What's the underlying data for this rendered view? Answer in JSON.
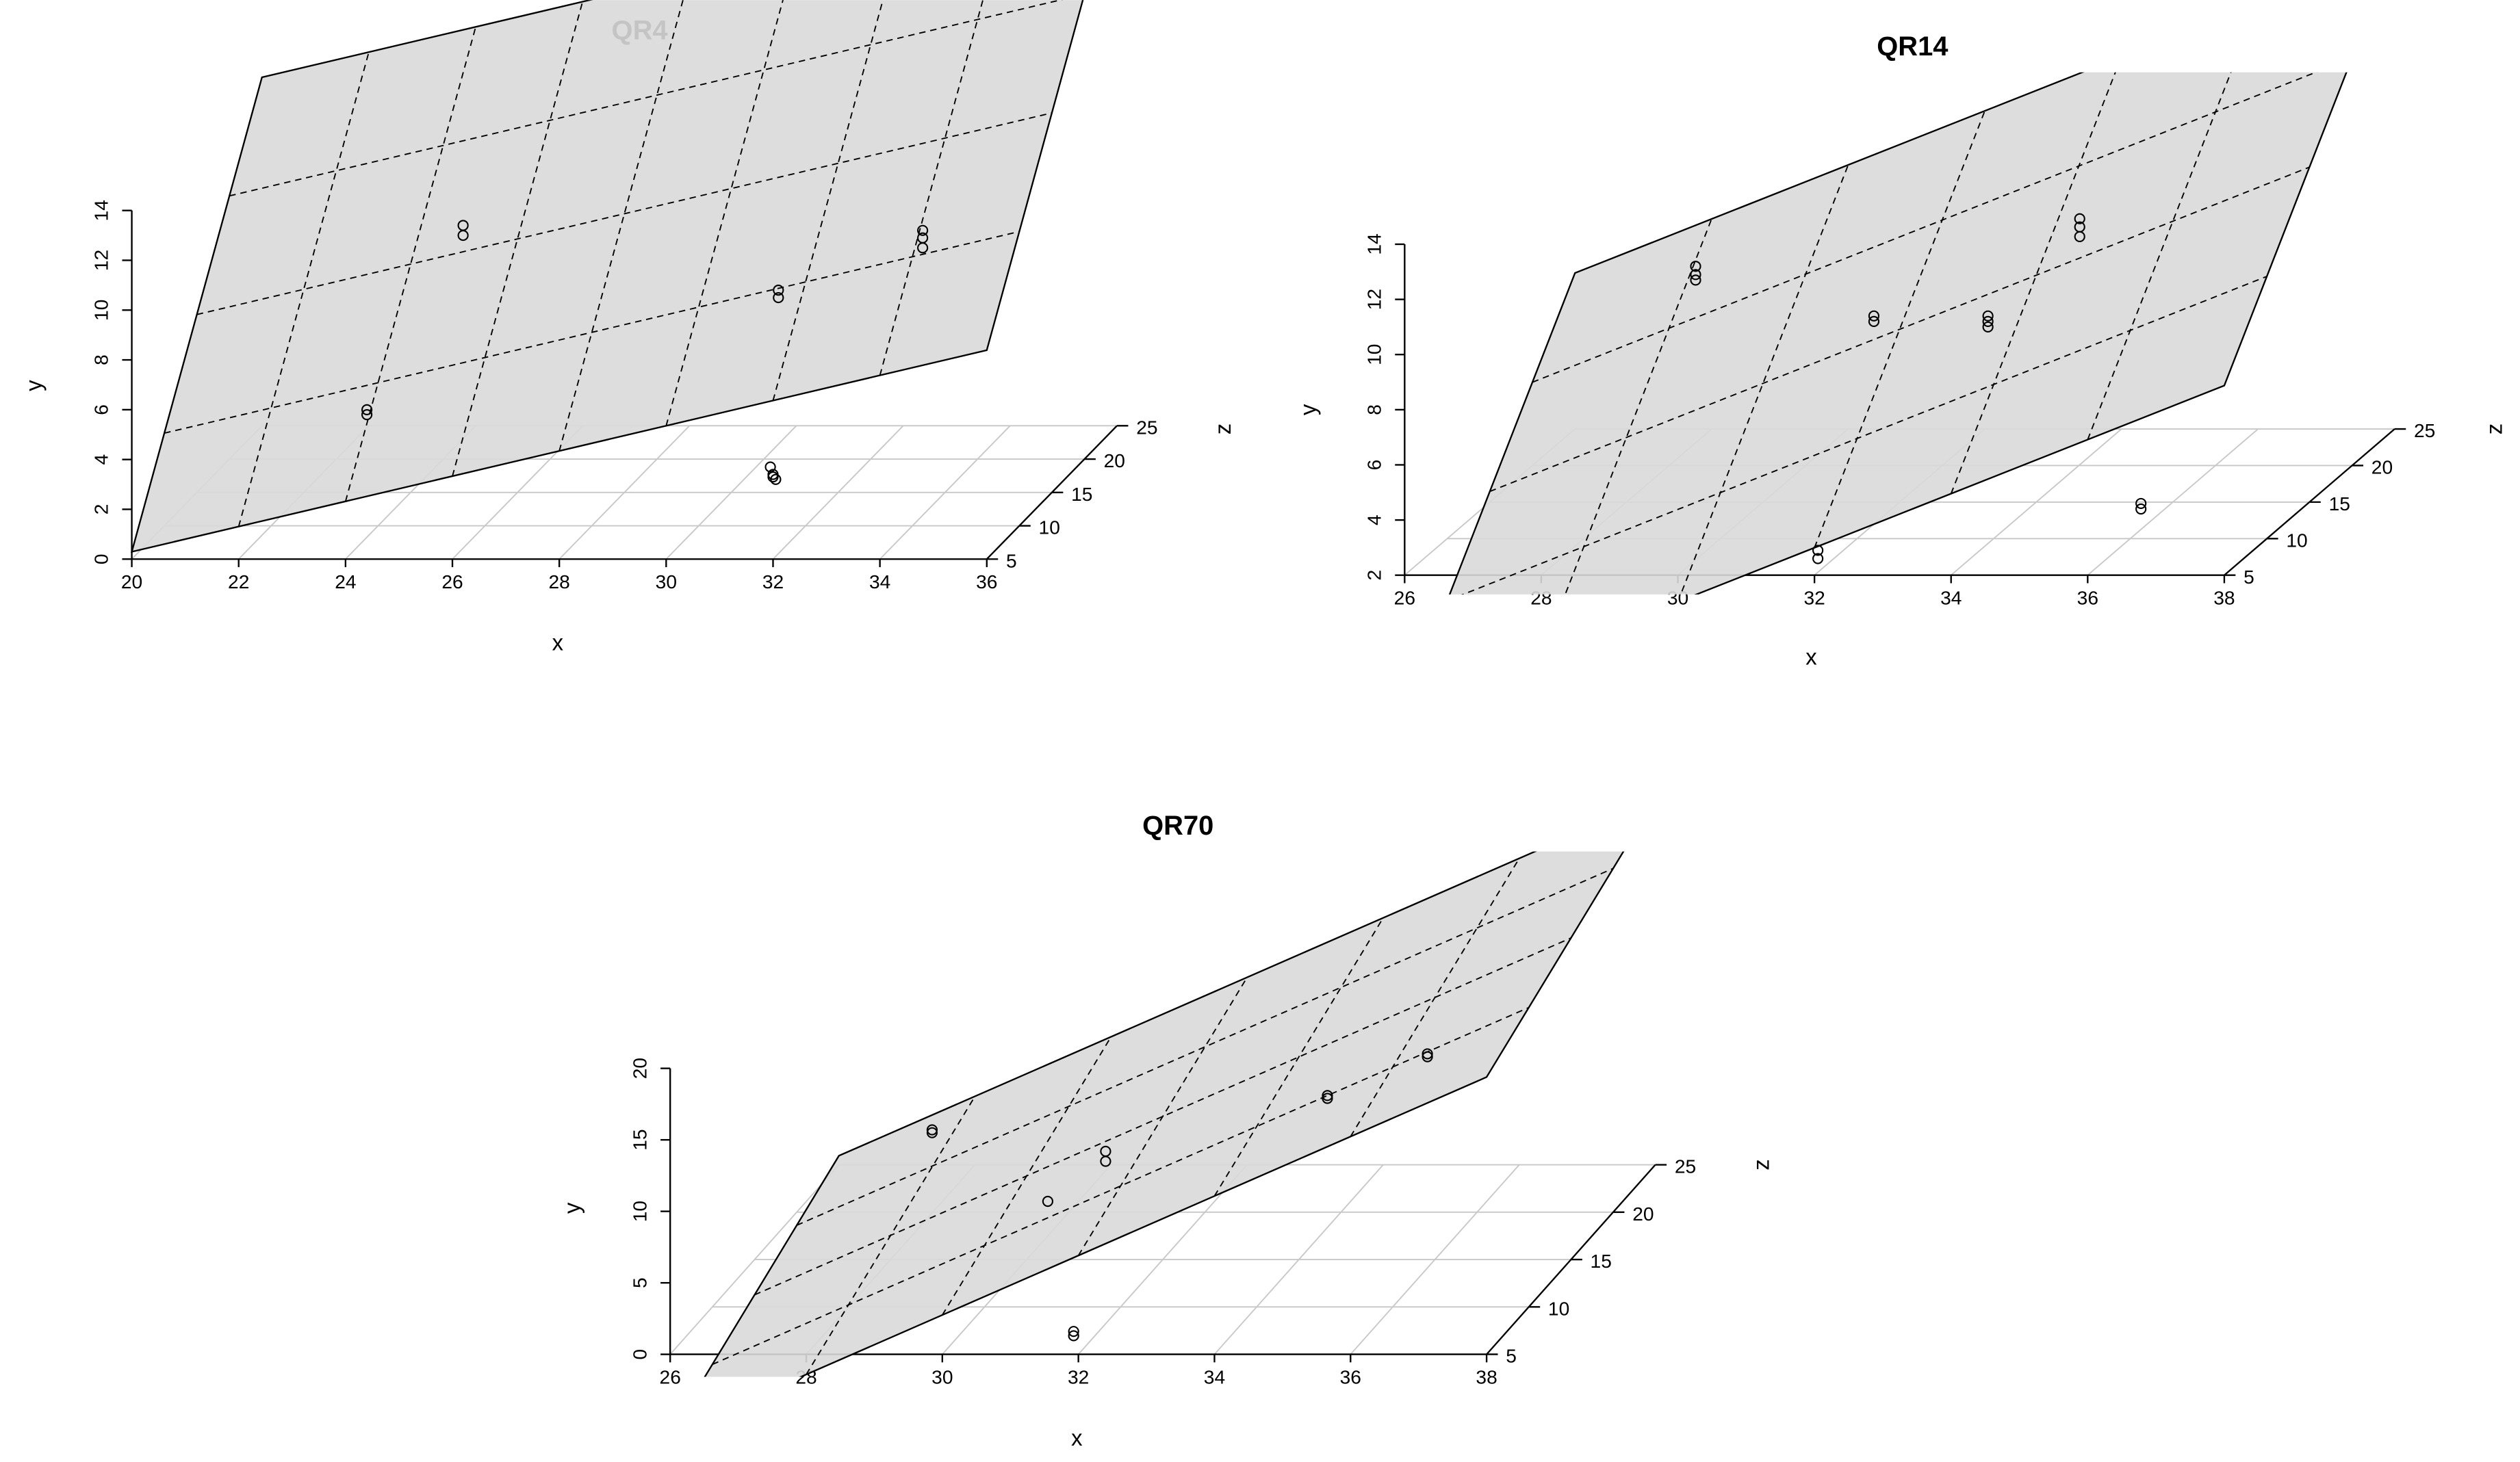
{
  "chart_data": [
    {
      "type": "scatter3d",
      "title": "QR4",
      "x_label": "x",
      "y_label": "y",
      "z_label": "z",
      "xlim": [
        20,
        36
      ],
      "xticks": [
        20,
        22,
        24,
        26,
        28,
        30,
        32,
        34,
        36
      ],
      "ylim": [
        0,
        14
      ],
      "yticks": [
        0,
        2,
        4,
        6,
        8,
        10,
        12,
        14
      ],
      "zlim": [
        5,
        25
      ],
      "zticks": [
        5,
        10,
        15,
        20,
        25
      ],
      "x": [
        26.2,
        26.2,
        24.4,
        24.4,
        32.1,
        32.1,
        34.8,
        34.8,
        34.8,
        31.95,
        32.0,
        32.05,
        32.0
      ],
      "y": [
        13.4,
        13.0,
        6.0,
        5.8,
        10.8,
        10.5,
        13.2,
        12.9,
        12.5,
        3.7,
        3.4,
        3.2,
        3.3
      ],
      "z": [
        5,
        5,
        5,
        5,
        5,
        5,
        5,
        5,
        5,
        5,
        5,
        5,
        5
      ],
      "plane": {
        "intercept": -13.25,
        "slope_x": 0.506,
        "slope_z": 0.685
      }
    },
    {
      "type": "scatter3d",
      "title": "QR14",
      "x_label": "x",
      "y_label": "y",
      "z_label": "z",
      "xlim": [
        26,
        38
      ],
      "xticks": [
        26,
        28,
        30,
        32,
        34,
        36,
        38
      ],
      "ylim": [
        2,
        14
      ],
      "yticks": [
        2,
        4,
        6,
        8,
        10,
        12,
        14
      ],
      "zlim": [
        5,
        25
      ],
      "zticks": [
        5,
        10,
        15,
        20,
        25
      ],
      "x": [
        30.26,
        30.26,
        30.26,
        32.87,
        32.87,
        34.54,
        34.54,
        34.54,
        35.26,
        35.26,
        35.26,
        32.05,
        32.05,
        36.78,
        36.78
      ],
      "y": [
        13.2,
        12.9,
        12.7,
        11.4,
        11.2,
        11.4,
        11.2,
        11.0,
        13.6,
        13.3,
        12.95,
        2.9,
        2.6,
        4.6,
        4.4
      ],
      "z": [
        5,
        5,
        5,
        5,
        5,
        5,
        5,
        5,
        10,
        10,
        10,
        5,
        5,
        5,
        5
      ],
      "plane": {
        "intercept": -31.0,
        "slope_x": 0.98,
        "slope_z": 0.527
      }
    },
    {
      "type": "scatter3d",
      "title": "QR70",
      "x_label": "x",
      "y_label": "y",
      "z_label": "z",
      "xlim": [
        26,
        38
      ],
      "xticks": [
        26,
        28,
        30,
        32,
        34,
        36,
        38
      ],
      "ylim": [
        0,
        20
      ],
      "yticks": [
        0,
        5,
        10,
        15,
        20
      ],
      "zlim": [
        5,
        25
      ],
      "zticks": [
        5,
        10,
        15,
        20,
        25
      ],
      "x": [
        29.85,
        29.85,
        31.55,
        32.4,
        32.4,
        35.66,
        35.66,
        36.51,
        36.51,
        31.93,
        31.93
      ],
      "y": [
        15.7,
        15.5,
        10.7,
        14.2,
        13.5,
        18.1,
        17.9,
        17.7,
        17.5,
        1.6,
        1.3
      ],
      "z": [
        5,
        5,
        5,
        5,
        5,
        5,
        5,
        10,
        10,
        5,
        5
      ],
      "plane": {
        "intercept": -61.2,
        "slope_x": 2.08,
        "slope_z": 0.31
      }
    }
  ]
}
